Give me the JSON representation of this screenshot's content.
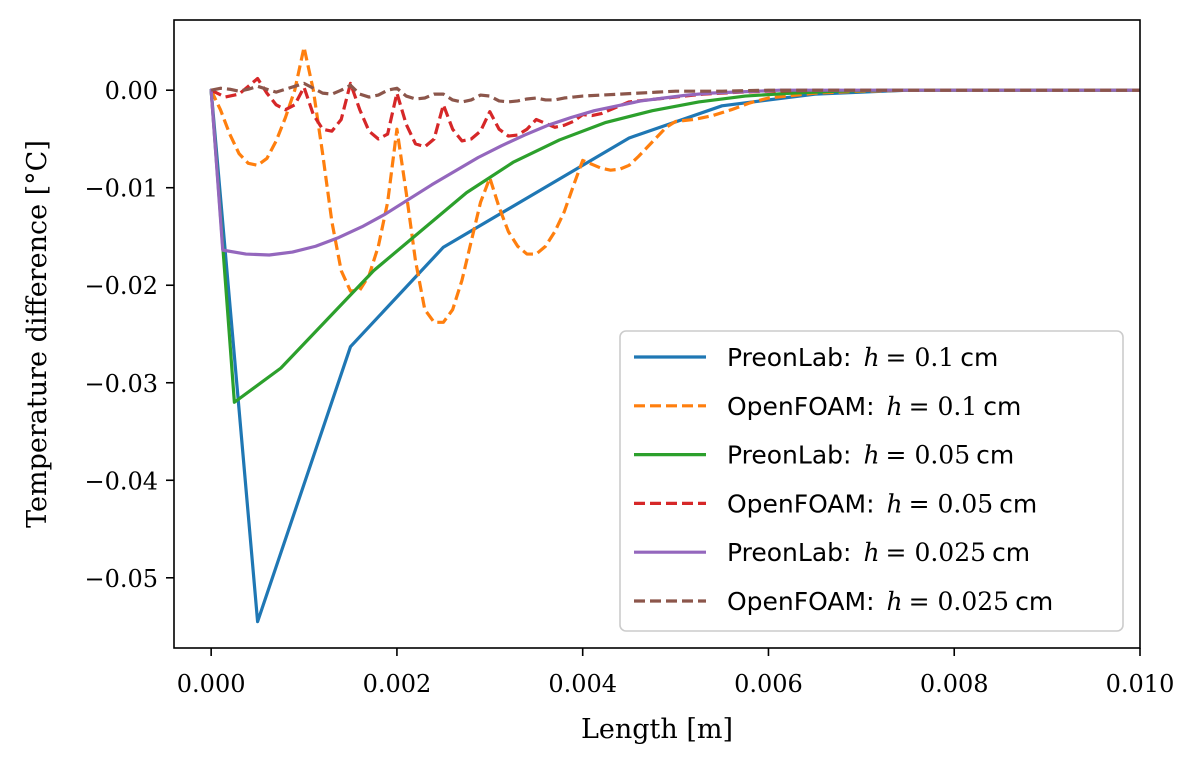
{
  "chart_data": {
    "type": "line",
    "xlabel": "Length [m]",
    "ylabel": "Temperature difference [°C]",
    "xlim": [
      -0.0004,
      0.01
    ],
    "ylim": [
      -0.0572,
      0.0072
    ],
    "x_ticks": [
      0.0,
      0.002,
      0.004,
      0.006,
      0.008,
      0.01
    ],
    "x_tick_labels": [
      "0.000",
      "0.002",
      "0.004",
      "0.006",
      "0.008",
      "0.010"
    ],
    "y_ticks": [
      0.0,
      -0.01,
      -0.02,
      -0.03,
      -0.04,
      -0.05
    ],
    "y_tick_labels": [
      "0.00",
      "−0.01",
      "−0.02",
      "−0.03",
      "−0.04",
      "−0.05"
    ],
    "grid": false,
    "legend_position": "lower-right",
    "series": [
      {
        "name": "PreonLab: h = 0.1 cm",
        "legend_prefix": "PreonLab:",
        "legend_var": "h",
        "legend_value": "= 0.1",
        "legend_unit": "cm",
        "color": "#1f77b4",
        "dashed": false,
        "x": [
          0.0,
          0.0005,
          0.0015,
          0.0025,
          0.0035,
          0.0045,
          0.0055,
          0.0065,
          0.0075,
          0.0085,
          0.0095,
          0.01
        ],
        "y": [
          0.0,
          -0.0545,
          -0.0263,
          -0.0161,
          -0.0105,
          -0.0049,
          -0.0016,
          -0.0004,
          0.0,
          0.0,
          0.0,
          0.0
        ]
      },
      {
        "name": "OpenFOAM: h = 0.1 cm",
        "legend_prefix": "OpenFOAM:",
        "legend_var": "h",
        "legend_value": "= 0.1",
        "legend_unit": "cm",
        "color": "#ff7f0e",
        "dashed": true,
        "x": [
          0.0,
          0.0001,
          0.0002,
          0.0003,
          0.0004,
          0.0005,
          0.0006,
          0.0007,
          0.0008,
          0.0009,
          0.001,
          0.0011,
          0.0012,
          0.0013,
          0.0014,
          0.0015,
          0.0016,
          0.0017,
          0.0018,
          0.0019,
          0.002,
          0.0021,
          0.0022,
          0.0023,
          0.0024,
          0.0025,
          0.0026,
          0.0027,
          0.0028,
          0.0029,
          0.003,
          0.0031,
          0.0032,
          0.0033,
          0.0034,
          0.0035,
          0.0036,
          0.0037,
          0.0038,
          0.0039,
          0.004,
          0.0041,
          0.0042,
          0.0043,
          0.0044,
          0.0045,
          0.0046,
          0.0047,
          0.0048,
          0.0049,
          0.005,
          0.0052,
          0.0054,
          0.0056,
          0.0058,
          0.006,
          0.0065,
          0.007,
          0.0075,
          0.008,
          0.009,
          0.01
        ],
        "y": [
          0.0,
          -0.002,
          -0.0045,
          -0.0065,
          -0.0075,
          -0.0077,
          -0.007,
          -0.0052,
          -0.0028,
          0.0,
          0.0044,
          0.0,
          -0.0065,
          -0.0135,
          -0.0185,
          -0.0206,
          -0.0205,
          -0.019,
          -0.016,
          -0.0115,
          -0.004,
          -0.0105,
          -0.0175,
          -0.0225,
          -0.0238,
          -0.0238,
          -0.0225,
          -0.0195,
          -0.0155,
          -0.0115,
          -0.009,
          -0.012,
          -0.0145,
          -0.016,
          -0.0168,
          -0.0168,
          -0.016,
          -0.0145,
          -0.0125,
          -0.0098,
          -0.0072,
          -0.0076,
          -0.008,
          -0.0082,
          -0.0081,
          -0.0077,
          -0.0068,
          -0.0058,
          -0.0048,
          -0.0038,
          -0.0032,
          -0.003,
          -0.0026,
          -0.002,
          -0.0013,
          -0.0008,
          -0.0003,
          -0.0001,
          0.0,
          0.0,
          0.0,
          0.0
        ]
      },
      {
        "name": "PreonLab: h = 0.05 cm",
        "legend_prefix": "PreonLab:",
        "legend_var": "h",
        "legend_value": "= 0.05",
        "legend_unit": "cm",
        "color": "#2ca02c",
        "dashed": false,
        "x": [
          0.0,
          0.00025,
          0.00075,
          0.00125,
          0.00175,
          0.00225,
          0.00275,
          0.00325,
          0.00375,
          0.00425,
          0.00475,
          0.00525,
          0.00575,
          0.00625,
          0.00675,
          0.00725,
          0.008,
          0.009,
          0.01
        ],
        "y": [
          0.0,
          -0.032,
          -0.0285,
          -0.0235,
          -0.0185,
          -0.0145,
          -0.0105,
          -0.0074,
          -0.0051,
          -0.0033,
          -0.0021,
          -0.0012,
          -0.0006,
          -0.0003,
          -0.0001,
          0.0,
          0.0,
          0.0,
          0.0
        ]
      },
      {
        "name": "OpenFOAM: h = 0.05 cm",
        "legend_prefix": "OpenFOAM:",
        "legend_var": "h",
        "legend_value": "= 0.05",
        "legend_unit": "cm",
        "color": "#d62728",
        "dashed": true,
        "x": [
          0.0,
          0.00015,
          0.0003,
          0.0004,
          0.0005,
          0.0006,
          0.0007,
          0.0008,
          0.0009,
          0.001,
          0.0011,
          0.0012,
          0.0013,
          0.0014,
          0.0015,
          0.0016,
          0.0017,
          0.0018,
          0.0019,
          0.002,
          0.0021,
          0.0022,
          0.0023,
          0.0024,
          0.0025,
          0.0026,
          0.0027,
          0.0028,
          0.0029,
          0.003,
          0.0031,
          0.0032,
          0.0033,
          0.0034,
          0.0035,
          0.0036,
          0.0037,
          0.0038,
          0.0039,
          0.004,
          0.0041,
          0.0042,
          0.0043,
          0.0044,
          0.0045,
          0.0047,
          0.0049,
          0.0051,
          0.0053,
          0.0055,
          0.0057,
          0.006,
          0.0065,
          0.007,
          0.008,
          0.009,
          0.01
        ],
        "y": [
          0.0,
          -0.0007,
          -0.0004,
          0.0004,
          0.0012,
          -0.0003,
          -0.0015,
          -0.002,
          -0.0015,
          0.0003,
          -0.0025,
          -0.004,
          -0.0042,
          -0.003,
          0.0007,
          -0.002,
          -0.0042,
          -0.005,
          -0.0045,
          -0.0003,
          -0.0035,
          -0.0055,
          -0.0058,
          -0.005,
          -0.0015,
          -0.004,
          -0.0052,
          -0.005,
          -0.0042,
          -0.0022,
          -0.004,
          -0.0047,
          -0.0046,
          -0.004,
          -0.003,
          -0.0034,
          -0.0038,
          -0.0036,
          -0.0032,
          -0.0025,
          -0.0026,
          -0.0024,
          -0.002,
          -0.0016,
          -0.0012,
          -0.001,
          -0.0008,
          -0.0006,
          -0.0004,
          -0.0003,
          -0.0002,
          -0.0001,
          0.0,
          0.0,
          0.0,
          0.0,
          0.0
        ]
      },
      {
        "name": "PreonLab: h = 0.025 cm",
        "legend_prefix": "PreonLab:",
        "legend_var": "h",
        "legend_value": "= 0.025",
        "legend_unit": "cm",
        "color": "#9467bd",
        "dashed": false,
        "x": [
          0.0,
          0.000125,
          0.000375,
          0.000625,
          0.000875,
          0.001125,
          0.001375,
          0.001625,
          0.001875,
          0.002125,
          0.002375,
          0.002625,
          0.002875,
          0.003125,
          0.003375,
          0.003625,
          0.003875,
          0.004125,
          0.004375,
          0.004625,
          0.004875,
          0.005125,
          0.005375,
          0.005625,
          0.005875,
          0.006125,
          0.006375,
          0.006625,
          0.007,
          0.008,
          0.009,
          0.01
        ],
        "y": [
          0.0,
          -0.0164,
          -0.0168,
          -0.0169,
          -0.0166,
          -0.016,
          -0.0151,
          -0.014,
          -0.0127,
          -0.0112,
          -0.0097,
          -0.0083,
          -0.0069,
          -0.0057,
          -0.0046,
          -0.0036,
          -0.0028,
          -0.0021,
          -0.0016,
          -0.0011,
          -0.0008,
          -0.0005,
          -0.0003,
          -0.0002,
          -0.0001,
          0.0,
          0.0,
          0.0,
          0.0,
          0.0,
          0.0,
          0.0
        ]
      },
      {
        "name": "OpenFOAM: h = 0.025 cm",
        "legend_prefix": "OpenFOAM:",
        "legend_var": "h",
        "legend_value": "= 0.025",
        "legend_unit": "cm",
        "color": "#8c564b",
        "dashed": true,
        "x": [
          0.0,
          0.0001,
          0.0002,
          0.0003,
          0.0004,
          0.0005,
          0.0006,
          0.0007,
          0.0008,
          0.0009,
          0.001,
          0.0011,
          0.0012,
          0.0013,
          0.0014,
          0.0015,
          0.0016,
          0.0017,
          0.0018,
          0.0019,
          0.002,
          0.0021,
          0.0022,
          0.0023,
          0.0024,
          0.0025,
          0.0026,
          0.0027,
          0.0028,
          0.0029,
          0.003,
          0.0031,
          0.0032,
          0.0033,
          0.0034,
          0.0035,
          0.0036,
          0.0037,
          0.0038,
          0.0039,
          0.004,
          0.0042,
          0.0044,
          0.0046,
          0.0048,
          0.005,
          0.0055,
          0.006,
          0.007,
          0.008,
          0.009,
          0.01
        ],
        "y": [
          0.0,
          0.0002,
          0.0001,
          -0.0001,
          0.0001,
          0.0004,
          0.0001,
          -0.0002,
          0.0001,
          0.0004,
          0.0007,
          0.0002,
          -0.0003,
          -0.0004,
          0.0,
          0.0005,
          -0.0004,
          -0.0007,
          -0.0005,
          0.0,
          0.0002,
          -0.0006,
          -0.0009,
          -0.0008,
          -0.0004,
          -0.0004,
          -0.001,
          -0.0012,
          -0.001,
          -0.0005,
          -0.0006,
          -0.0011,
          -0.0012,
          -0.0011,
          -0.0009,
          -0.0008,
          -0.001,
          -0.001,
          -0.0008,
          -0.0007,
          -0.0006,
          -0.0005,
          -0.0004,
          -0.0003,
          -0.0002,
          -0.0001,
          -0.0001,
          0.0,
          0.0,
          0.0,
          0.0,
          0.0
        ]
      }
    ]
  }
}
